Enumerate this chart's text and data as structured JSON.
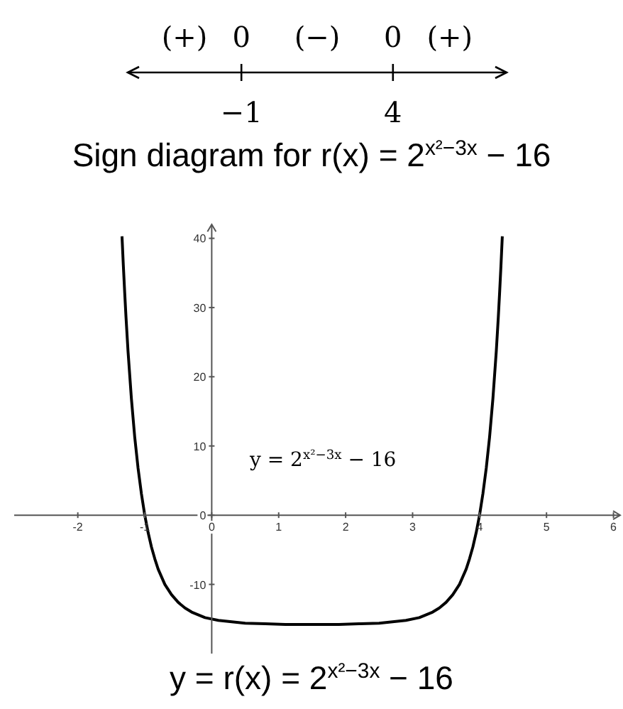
{
  "chart_data": [
    {
      "type": "other",
      "title": "Sign diagram for r(x) = 2$^{x²−3x}$ − 16",
      "categories": [
        "−1",
        "4"
      ],
      "annotations": [
        "(+)",
        "0",
        "(−)",
        "0",
        "(+)"
      ]
    },
    {
      "type": "line",
      "title": "y = r(x) = 2$^{x²−3x}$ − 16",
      "xlim": [
        -2.95,
        6.1
      ],
      "xticks": [
        -2,
        -1,
        0,
        1,
        2,
        3,
        4,
        5,
        6
      ],
      "ylim": [
        -20,
        42
      ],
      "yticks": [
        -10,
        0,
        10,
        20,
        30,
        40
      ],
      "x": [
        -1.34,
        -1.32,
        -1.3,
        -1.28,
        -1.25,
        -1.2,
        -1.15,
        -1.1,
        -1.05,
        -1,
        -0.95,
        -0.9,
        -0.85,
        -0.8,
        -0.7,
        -0.6,
        -0.5,
        -0.4,
        -0.3,
        -0.1,
        0.1,
        0.3,
        0.5,
        0.8,
        1.1,
        1.5,
        1.9,
        2.2,
        2.5,
        2.7,
        2.9,
        3.1,
        3.3,
        3.4,
        3.5,
        3.6,
        3.7,
        3.8,
        3.85,
        3.9,
        3.95,
        4,
        4.05,
        4.1,
        4.15,
        4.2,
        4.25,
        4.28,
        4.3,
        4.32,
        4.34
      ],
      "series": [
        {
          "name": "y = 2$^{x²−3x}$ − 16",
          "color": "#000000",
          "values": [
            40.3,
            36.1,
            32.2,
            28.6,
            23.7,
            16.9,
            11.3,
            6.8,
            3.1,
            0,
            -2.5,
            -4.6,
            -6.3,
            -7.8,
            -10.0,
            -11.5,
            -12.6,
            -13.4,
            -14.0,
            -14.8,
            -15.2,
            -15.4,
            -15.6,
            -15.7,
            -15.8,
            -15.8,
            -15.8,
            -15.7,
            -15.6,
            -15.4,
            -15.2,
            -14.8,
            -14.0,
            -13.4,
            -12.6,
            -11.5,
            -10.0,
            -7.8,
            -6.3,
            -4.6,
            -2.5,
            0,
            3.1,
            6.8,
            11.3,
            16.9,
            23.7,
            28.6,
            32.2,
            36.1,
            40.3
          ]
        }
      ]
    }
  ]
}
